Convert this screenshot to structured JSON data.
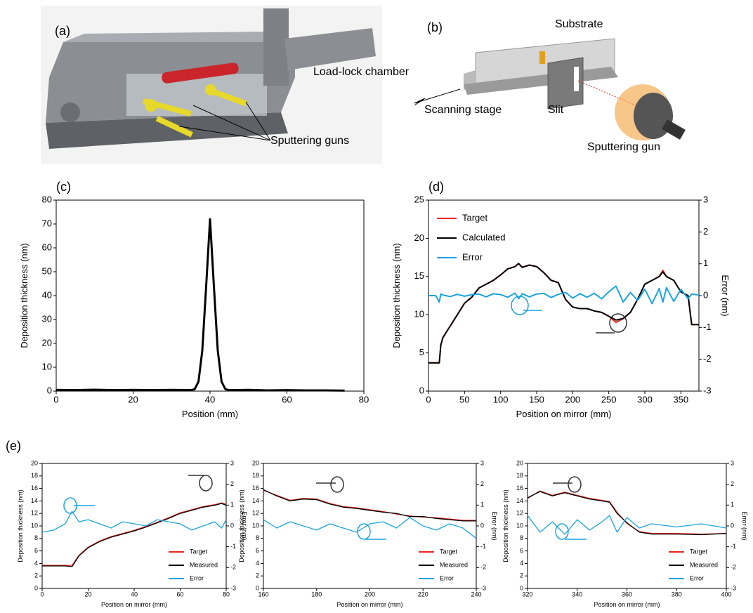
{
  "panels": {
    "a": {
      "label": "(a)",
      "annotations": [
        "Load-lock chamber",
        "Sputtering guns"
      ]
    },
    "b": {
      "label": "(b)",
      "annotations": [
        "Substrate",
        "Scanning stage",
        "Slit",
        "Sputtering gun"
      ]
    },
    "e": {
      "label": "(e)"
    }
  },
  "chart_data": [
    {
      "type": "line",
      "label": "(c)",
      "x_label": "Position (mm)",
      "y_label": "Deposition thickness (nm)",
      "xlim": [
        0,
        80
      ],
      "xticks": [
        0,
        20,
        40,
        60,
        80
      ],
      "ylim": [
        0,
        80
      ],
      "yticks": [
        0,
        10,
        20,
        30,
        40,
        50,
        60,
        70,
        80
      ],
      "color": "#000000",
      "x": [
        0,
        5,
        10,
        15,
        20,
        25,
        30,
        35,
        36,
        37,
        38,
        39,
        40,
        41,
        42,
        43,
        44,
        45,
        50,
        55,
        60,
        65,
        70,
        75
      ],
      "values": [
        0.5,
        0.4,
        0.6,
        0.4,
        0.5,
        0.4,
        0.5,
        0.4,
        0.8,
        4,
        17,
        44,
        72,
        44,
        17,
        4,
        0.8,
        0.4,
        0.5,
        0.3,
        0.4,
        0.3,
        0.3,
        0.2
      ]
    },
    {
      "type": "line",
      "label": "(d)",
      "x_label": "Position on mirror (mm)",
      "y_label": "Deposition thickness (nm)",
      "y2_label": "Error (nm)",
      "legend": "upper left",
      "xlim": [
        0,
        375
      ],
      "xticks": [
        0,
        50,
        100,
        150,
        200,
        250,
        300,
        350
      ],
      "ylim": [
        0,
        25
      ],
      "yticks": [
        0,
        5,
        10,
        15,
        20,
        25
      ],
      "y2lim": [
        -3,
        3
      ],
      "y2ticks": [
        -3,
        -2,
        -1,
        0,
        1,
        2,
        3
      ],
      "x": [
        0,
        10,
        15,
        17,
        20,
        30,
        40,
        50,
        60,
        70,
        80,
        90,
        100,
        110,
        120,
        125,
        130,
        140,
        150,
        160,
        170,
        180,
        190,
        200,
        210,
        220,
        230,
        240,
        250,
        260,
        270,
        280,
        290,
        300,
        310,
        320,
        325,
        330,
        340,
        350,
        360,
        365,
        375
      ],
      "series": [
        {
          "name": "Target",
          "color": "#e8251f",
          "values": [
            3.7,
            3.7,
            3.7,
            6.0,
            7.0,
            8.5,
            10.0,
            11.5,
            12.3,
            13.5,
            14.0,
            14.5,
            15.2,
            16.0,
            16.3,
            16.7,
            16.2,
            16.5,
            16.3,
            15.5,
            14.5,
            14.2,
            12.0,
            11.0,
            10.8,
            10.8,
            10.5,
            10.3,
            9.8,
            9.0,
            9.5,
            10.3,
            12.0,
            14.0,
            14.5,
            15.0,
            15.8,
            15.0,
            14.5,
            13.0,
            12.5,
            8.7,
            8.7
          ]
        },
        {
          "name": "Calculated",
          "color": "#000000",
          "values": [
            3.7,
            3.7,
            3.7,
            6.0,
            7.0,
            8.5,
            10.0,
            11.5,
            12.3,
            13.5,
            14.0,
            14.5,
            15.2,
            16.0,
            16.3,
            16.7,
            16.2,
            16.5,
            16.3,
            15.5,
            14.5,
            14.2,
            12.0,
            11.0,
            10.8,
            10.8,
            10.5,
            10.3,
            9.8,
            9.3,
            9.5,
            10.3,
            12.0,
            14.0,
            14.5,
            15.0,
            15.6,
            15.0,
            14.5,
            13.0,
            12.5,
            8.7,
            8.7
          ]
        },
        {
          "name": "Error",
          "color": "#1ba3e0",
          "axis": "y2",
          "values": [
            0,
            0,
            -0.2,
            0.05,
            0.02,
            -0.03,
            0.04,
            -0.02,
            0.03,
            0.05,
            -0.04,
            0.06,
            0.03,
            -0.05,
            0.08,
            -0.1,
            0.06,
            -0.04,
            0.05,
            0.07,
            -0.06,
            0.04,
            0.1,
            -0.08,
            0.06,
            -0.05,
            0.07,
            -0.1,
            0.12,
            0.3,
            -0.2,
            0.1,
            -0.15,
            0.2,
            -0.25,
            0.22,
            -0.2,
            0.25,
            -0.18,
            0.2,
            -0.1,
            0.05,
            0.02
          ]
        }
      ]
    },
    {
      "type": "line",
      "x_label": "Position on mirror (mm)",
      "y_label": "Deposition thickness (nm)",
      "y2_label": "Error (nm)",
      "legend": "lower right",
      "xlim": [
        0,
        80
      ],
      "xticks": [
        0,
        20,
        40,
        60,
        80
      ],
      "ylim": [
        0,
        20
      ],
      "yticks": [
        0,
        2,
        4,
        6,
        8,
        10,
        12,
        14,
        16,
        18,
        20
      ],
      "y2lim": [
        -3,
        3
      ],
      "y2ticks": [
        -3,
        -2,
        -1,
        0,
        1,
        2,
        3
      ],
      "x": [
        0,
        5,
        10,
        13,
        16,
        20,
        25,
        30,
        35,
        40,
        45,
        50,
        55,
        60,
        65,
        70,
        75,
        78,
        80
      ],
      "series": [
        {
          "name": "Target",
          "color": "#e8251f",
          "values": [
            3.7,
            3.7,
            3.7,
            3.7,
            5.3,
            6.6,
            7.6,
            8.3,
            8.8,
            9.3,
            9.9,
            10.6,
            11.3,
            12.1,
            12.6,
            13.1,
            13.4,
            13.7,
            13.5
          ]
        },
        {
          "name": "Measured",
          "color": "#000000",
          "values": [
            3.6,
            3.6,
            3.6,
            3.5,
            5.2,
            6.5,
            7.5,
            8.2,
            8.7,
            9.2,
            9.8,
            10.5,
            11.2,
            12.0,
            12.5,
            13.0,
            13.3,
            13.6,
            13.3
          ]
        },
        {
          "name": "Error",
          "color": "#1ba3e0",
          "axis": "y2",
          "values": [
            -0.3,
            -0.2,
            0.1,
            0.7,
            0.2,
            0.3,
            0.1,
            -0.1,
            0.2,
            0.1,
            0.0,
            0.3,
            0.2,
            0.1,
            -0.2,
            0.0,
            0.2,
            -0.1,
            0.3
          ]
        }
      ]
    },
    {
      "type": "line",
      "x_label": "Position on mirror (mm)",
      "y_label": "Deposition thickness (nm)",
      "y2_label": "Error (nm)",
      "legend": "lower right",
      "xlim": [
        160,
        240
      ],
      "xticks": [
        160,
        180,
        200,
        220,
        240
      ],
      "ylim": [
        0,
        20
      ],
      "yticks": [
        0,
        2,
        4,
        6,
        8,
        10,
        12,
        14,
        16,
        18,
        20
      ],
      "y2lim": [
        -3,
        3
      ],
      "y2ticks": [
        -3,
        -2,
        -1,
        0,
        1,
        2,
        3
      ],
      "x": [
        160,
        165,
        170,
        175,
        180,
        185,
        190,
        195,
        200,
        205,
        210,
        215,
        220,
        225,
        230,
        235,
        240
      ],
      "series": [
        {
          "name": "Target",
          "color": "#e8251f",
          "values": [
            15.7,
            14.9,
            14.1,
            14.4,
            14.3,
            13.6,
            13.1,
            12.9,
            12.6,
            12.3,
            11.9,
            11.6,
            11.4,
            11.3,
            11.1,
            10.9,
            10.9
          ]
        },
        {
          "name": "Measured",
          "color": "#000000",
          "values": [
            15.8,
            14.8,
            14.0,
            14.3,
            14.2,
            13.5,
            13.0,
            12.8,
            12.5,
            12.2,
            12.0,
            11.5,
            11.5,
            11.2,
            11.0,
            10.8,
            10.8
          ]
        },
        {
          "name": "Error",
          "color": "#1ba3e0",
          "axis": "y2",
          "values": [
            0.3,
            -0.1,
            0.2,
            0.0,
            -0.2,
            0.1,
            -0.1,
            -0.3,
            0.1,
            0.2,
            -0.1,
            0.4,
            0.0,
            -0.2,
            0.1,
            -0.1,
            -0.6
          ]
        }
      ]
    },
    {
      "type": "line",
      "x_label": "Position on mirror (mm)",
      "y_label": "Deposition thickness (nm)",
      "y2_label": "Error (nm)",
      "legend": "lower right",
      "xlim": [
        320,
        400
      ],
      "xticks": [
        320,
        340,
        360,
        380,
        400
      ],
      "ylim": [
        0,
        20
      ],
      "yticks": [
        0,
        2,
        4,
        6,
        8,
        10,
        12,
        14,
        16,
        18,
        20
      ],
      "y2lim": [
        -3,
        3
      ],
      "y2ticks": [
        -3,
        -2,
        -1,
        0,
        1,
        2,
        3
      ],
      "x": [
        320,
        325,
        330,
        335,
        340,
        345,
        350,
        353,
        356,
        360,
        365,
        370,
        380,
        390,
        400
      ],
      "series": [
        {
          "name": "Target",
          "color": "#e8251f",
          "values": [
            14.4,
            15.6,
            14.9,
            15.4,
            14.9,
            14.4,
            14.1,
            13.9,
            12.2,
            10.4,
            9.1,
            8.8,
            8.8,
            8.7,
            8.8
          ]
        },
        {
          "name": "Measured",
          "color": "#000000",
          "values": [
            14.5,
            15.5,
            14.8,
            15.3,
            14.8,
            14.3,
            14.0,
            13.8,
            12.0,
            10.5,
            9.0,
            8.7,
            8.7,
            8.6,
            8.8
          ]
        },
        {
          "name": "Error",
          "color": "#1ba3e0",
          "axis": "y2",
          "values": [
            0.5,
            -0.3,
            0.2,
            -0.4,
            0.3,
            -0.2,
            0.2,
            0.5,
            -0.3,
            0.4,
            -0.1,
            0.1,
            -0.05,
            0.1,
            -0.1
          ]
        }
      ]
    }
  ]
}
